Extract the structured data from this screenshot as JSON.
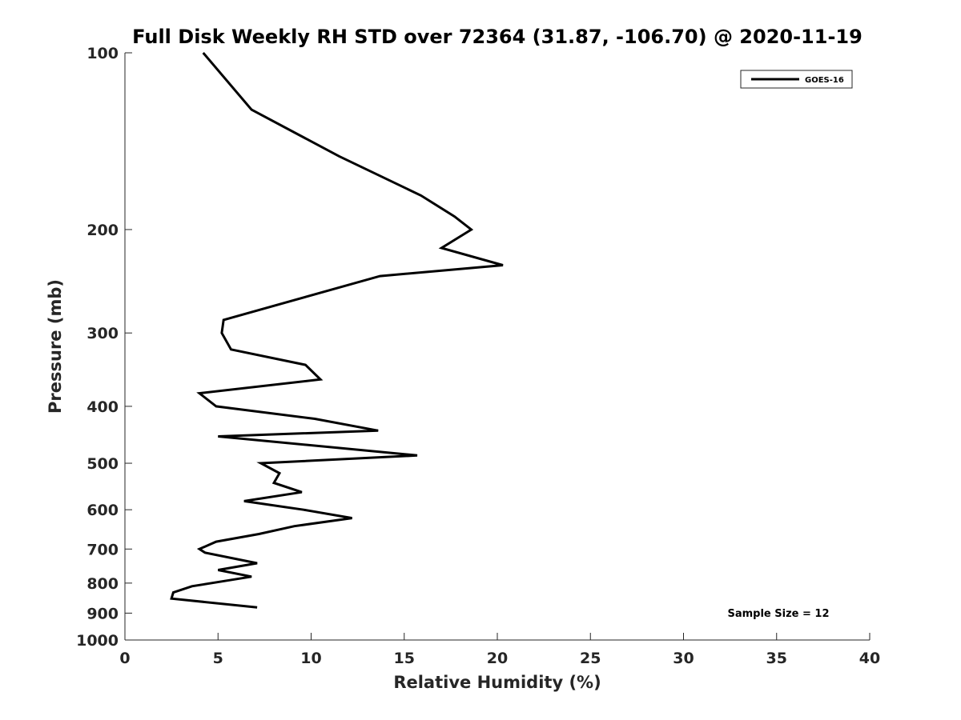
{
  "chart_data": {
    "type": "line",
    "title": "Full Disk Weekly RH STD over 72364 (31.87, -106.70) @ 2020-11-19",
    "xlabel": "Relative Humidity (%)",
    "ylabel": "Pressure (mb)",
    "xlim": [
      0,
      40
    ],
    "ylim": [
      100,
      1000
    ],
    "y_scale": "log",
    "y_reversed": true,
    "grid": false,
    "legend_position": "top-right",
    "x_ticks": [
      0,
      5,
      10,
      15,
      20,
      25,
      30,
      35,
      40
    ],
    "y_ticks": [
      100,
      200,
      300,
      400,
      500,
      600,
      700,
      800,
      900,
      1000
    ],
    "series": [
      {
        "name": "GOES-16",
        "color": "#000000",
        "points": [
          {
            "x": 4.2,
            "p": 100
          },
          {
            "x": 6.8,
            "p": 125
          },
          {
            "x": 11.5,
            "p": 150
          },
          {
            "x": 15.9,
            "p": 175
          },
          {
            "x": 17.7,
            "p": 190
          },
          {
            "x": 18.6,
            "p": 200
          },
          {
            "x": 17.0,
            "p": 215
          },
          {
            "x": 20.3,
            "p": 230
          },
          {
            "x": 13.7,
            "p": 240
          },
          {
            "x": 5.3,
            "p": 285
          },
          {
            "x": 5.2,
            "p": 300
          },
          {
            "x": 5.7,
            "p": 320
          },
          {
            "x": 9.7,
            "p": 340
          },
          {
            "x": 10.5,
            "p": 360
          },
          {
            "x": 4.0,
            "p": 380
          },
          {
            "x": 4.9,
            "p": 400
          },
          {
            "x": 10.2,
            "p": 420
          },
          {
            "x": 13.6,
            "p": 440
          },
          {
            "x": 5.0,
            "p": 450
          },
          {
            "x": 15.7,
            "p": 485
          },
          {
            "x": 7.3,
            "p": 500
          },
          {
            "x": 8.3,
            "p": 520
          },
          {
            "x": 8.0,
            "p": 540
          },
          {
            "x": 9.5,
            "p": 560
          },
          {
            "x": 6.4,
            "p": 580
          },
          {
            "x": 9.6,
            "p": 600
          },
          {
            "x": 12.2,
            "p": 620
          },
          {
            "x": 9.1,
            "p": 640
          },
          {
            "x": 7.2,
            "p": 660
          },
          {
            "x": 4.9,
            "p": 680
          },
          {
            "x": 4.0,
            "p": 700
          },
          {
            "x": 4.3,
            "p": 710
          },
          {
            "x": 7.1,
            "p": 740
          },
          {
            "x": 5.0,
            "p": 760
          },
          {
            "x": 6.8,
            "p": 780
          },
          {
            "x": 3.6,
            "p": 810
          },
          {
            "x": 2.6,
            "p": 830
          },
          {
            "x": 2.5,
            "p": 850
          },
          {
            "x": 7.1,
            "p": 880
          }
        ]
      }
    ],
    "annotation": "Sample Size = 12"
  }
}
